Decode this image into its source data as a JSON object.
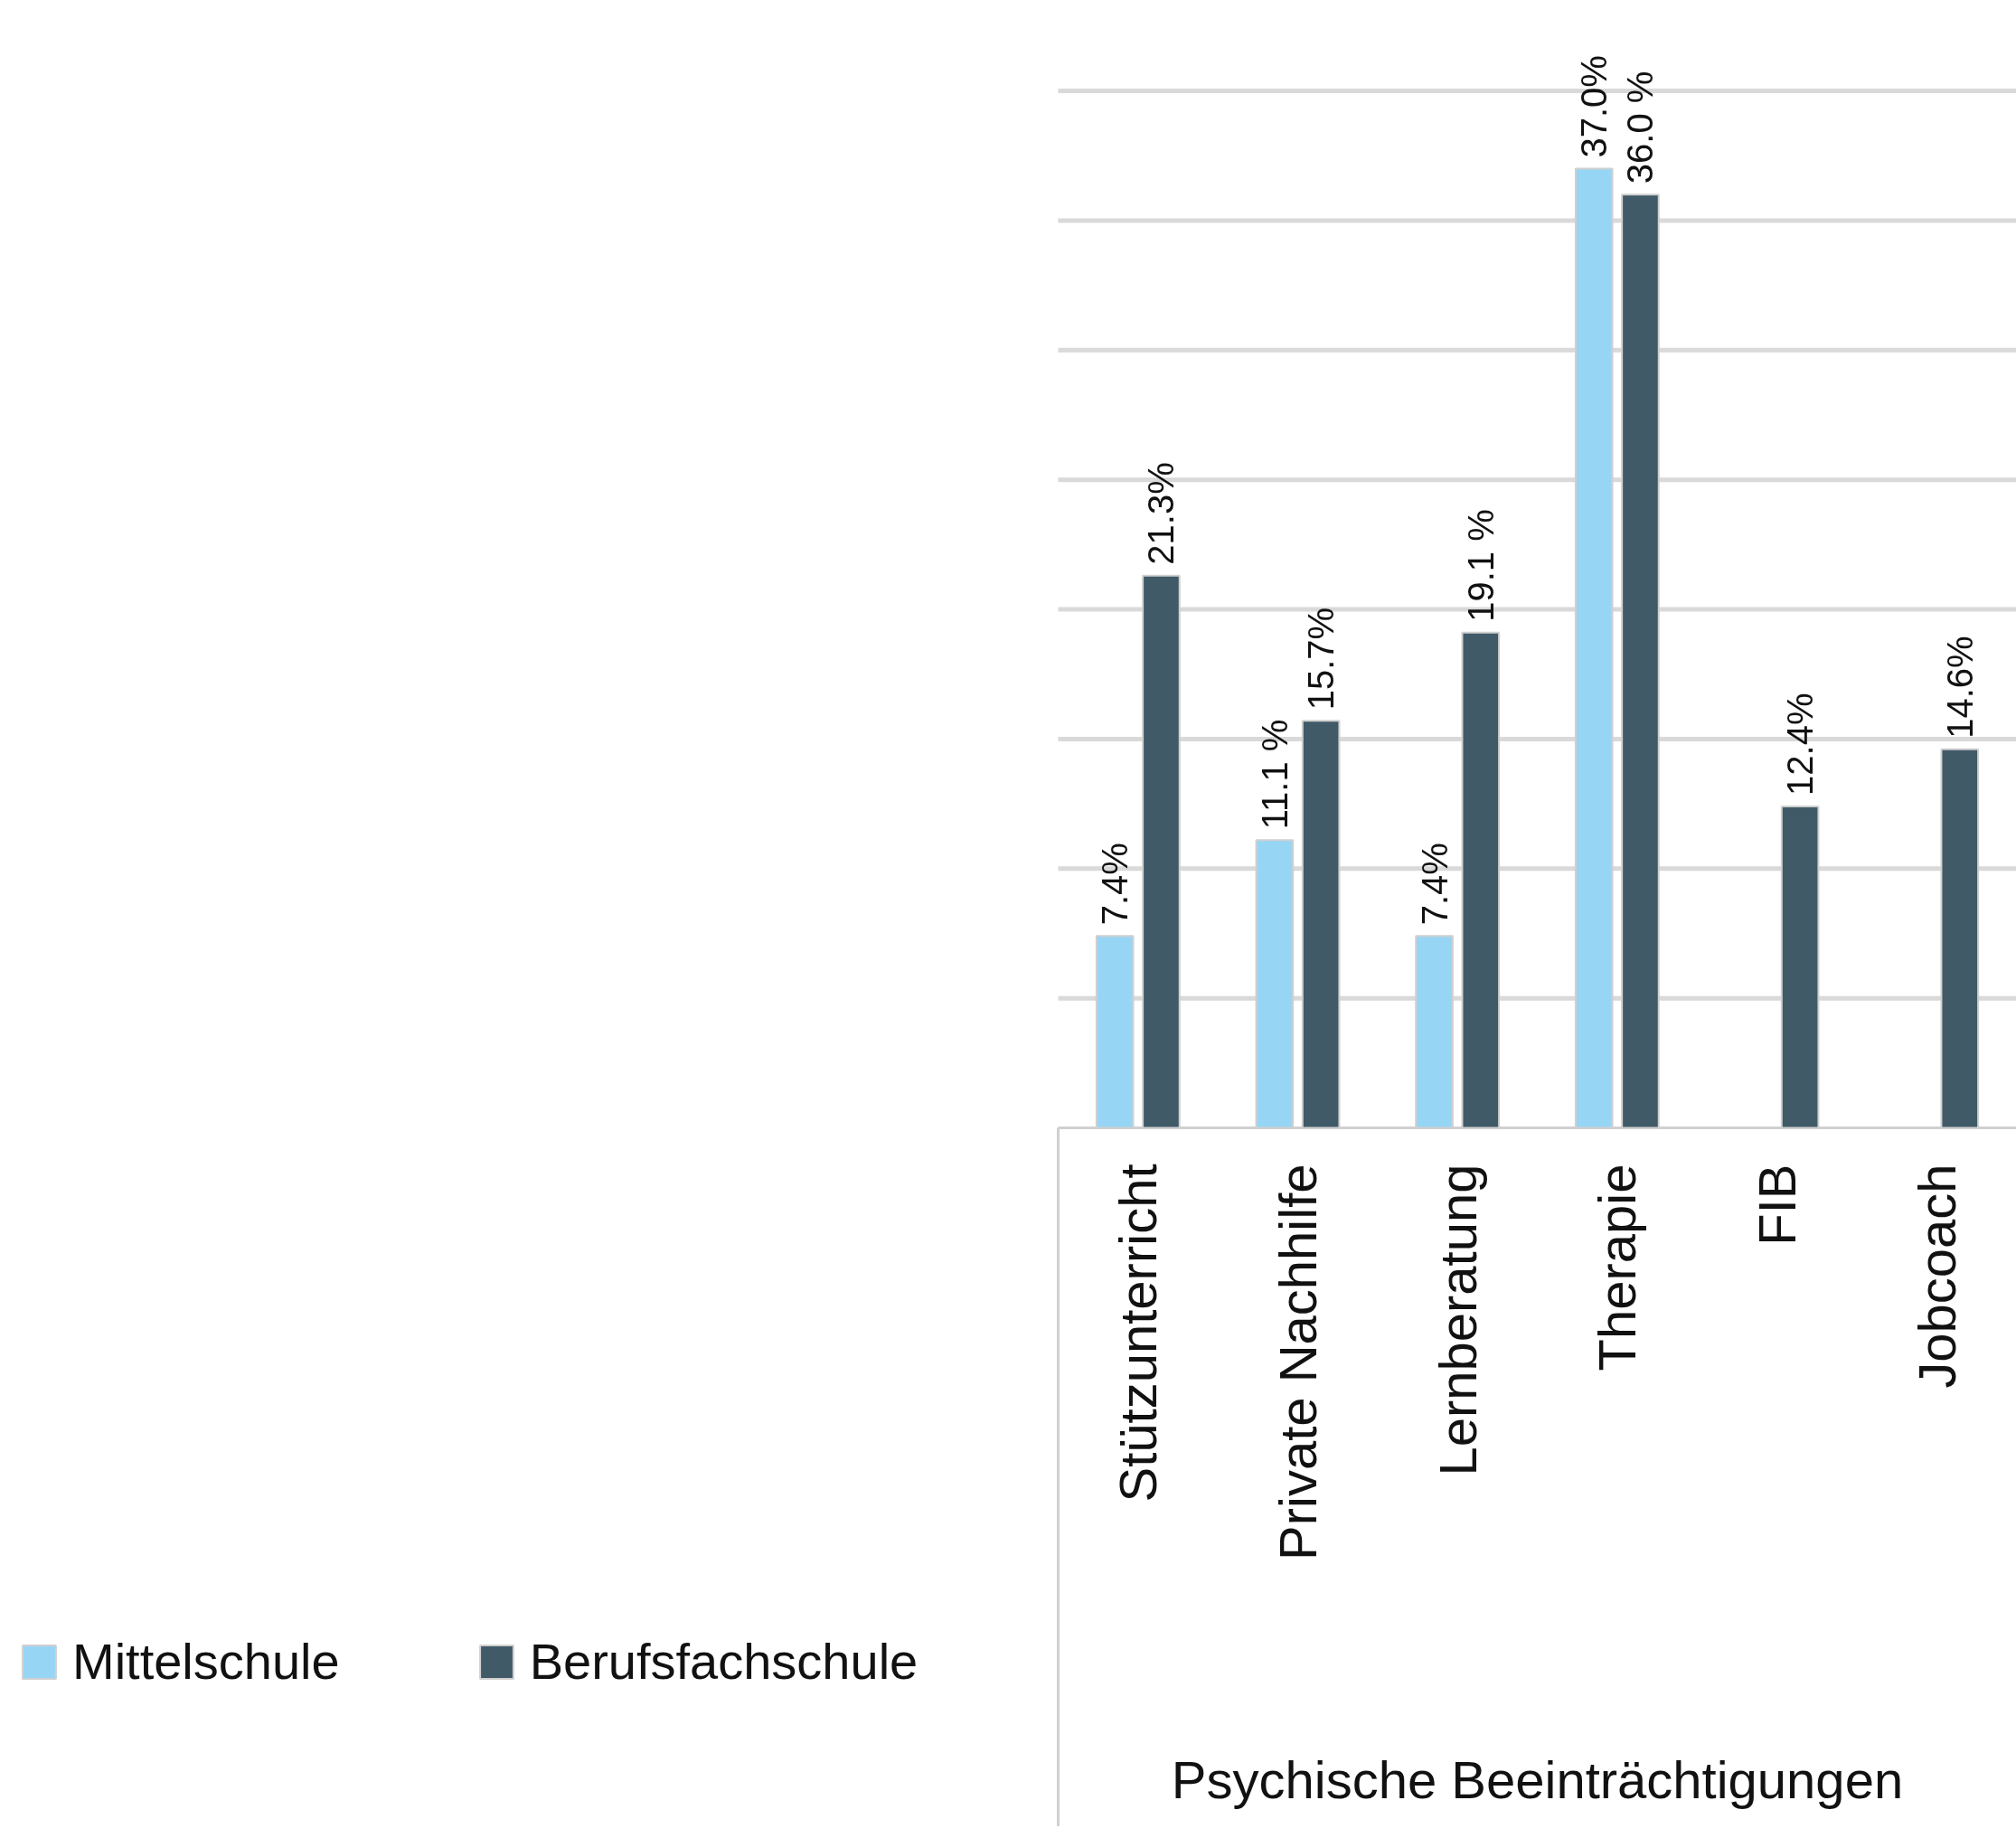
{
  "chart_data": {
    "type": "bar",
    "xlabel": "Psychische Beeinträchtigungen",
    "categories": [
      "Stützunterricht",
      "Private Nachhilfe",
      "Lernberatung",
      "Therapie",
      "FIB",
      "Jobcoach"
    ],
    "series": [
      {
        "name": "Mittelschule",
        "color": "#97d5f5",
        "values": [
          7.4,
          11.1,
          7.4,
          37.0,
          null,
          null
        ],
        "value_labels": [
          "7.4%",
          "11.1 %",
          "7.4%",
          "37.0%",
          null,
          null
        ]
      },
      {
        "name": "Berufsfachschule",
        "color": "#405a68",
        "values": [
          21.3,
          15.7,
          19.1,
          36.0,
          12.4,
          14.6
        ],
        "value_labels": [
          "21.3%",
          "15.7%",
          "19.1 %",
          "36.0 %",
          "12.4%",
          "14.6%"
        ]
      }
    ],
    "ylim": [
      0,
      40
    ],
    "yticks": [
      {
        "value": 0,
        "label": null
      },
      {
        "value": 5,
        "label": null
      },
      {
        "value": 10,
        "label": null
      },
      {
        "value": 15,
        "label": null
      },
      {
        "value": 20,
        "label": null
      },
      {
        "value": 25,
        "label": null
      },
      {
        "value": 30,
        "label": null
      },
      {
        "value": 35,
        "label": null
      },
      {
        "value": 40,
        "label": null
      }
    ],
    "tick_labels": "x",
    "grid": "y",
    "legend": "bottom left"
  }
}
